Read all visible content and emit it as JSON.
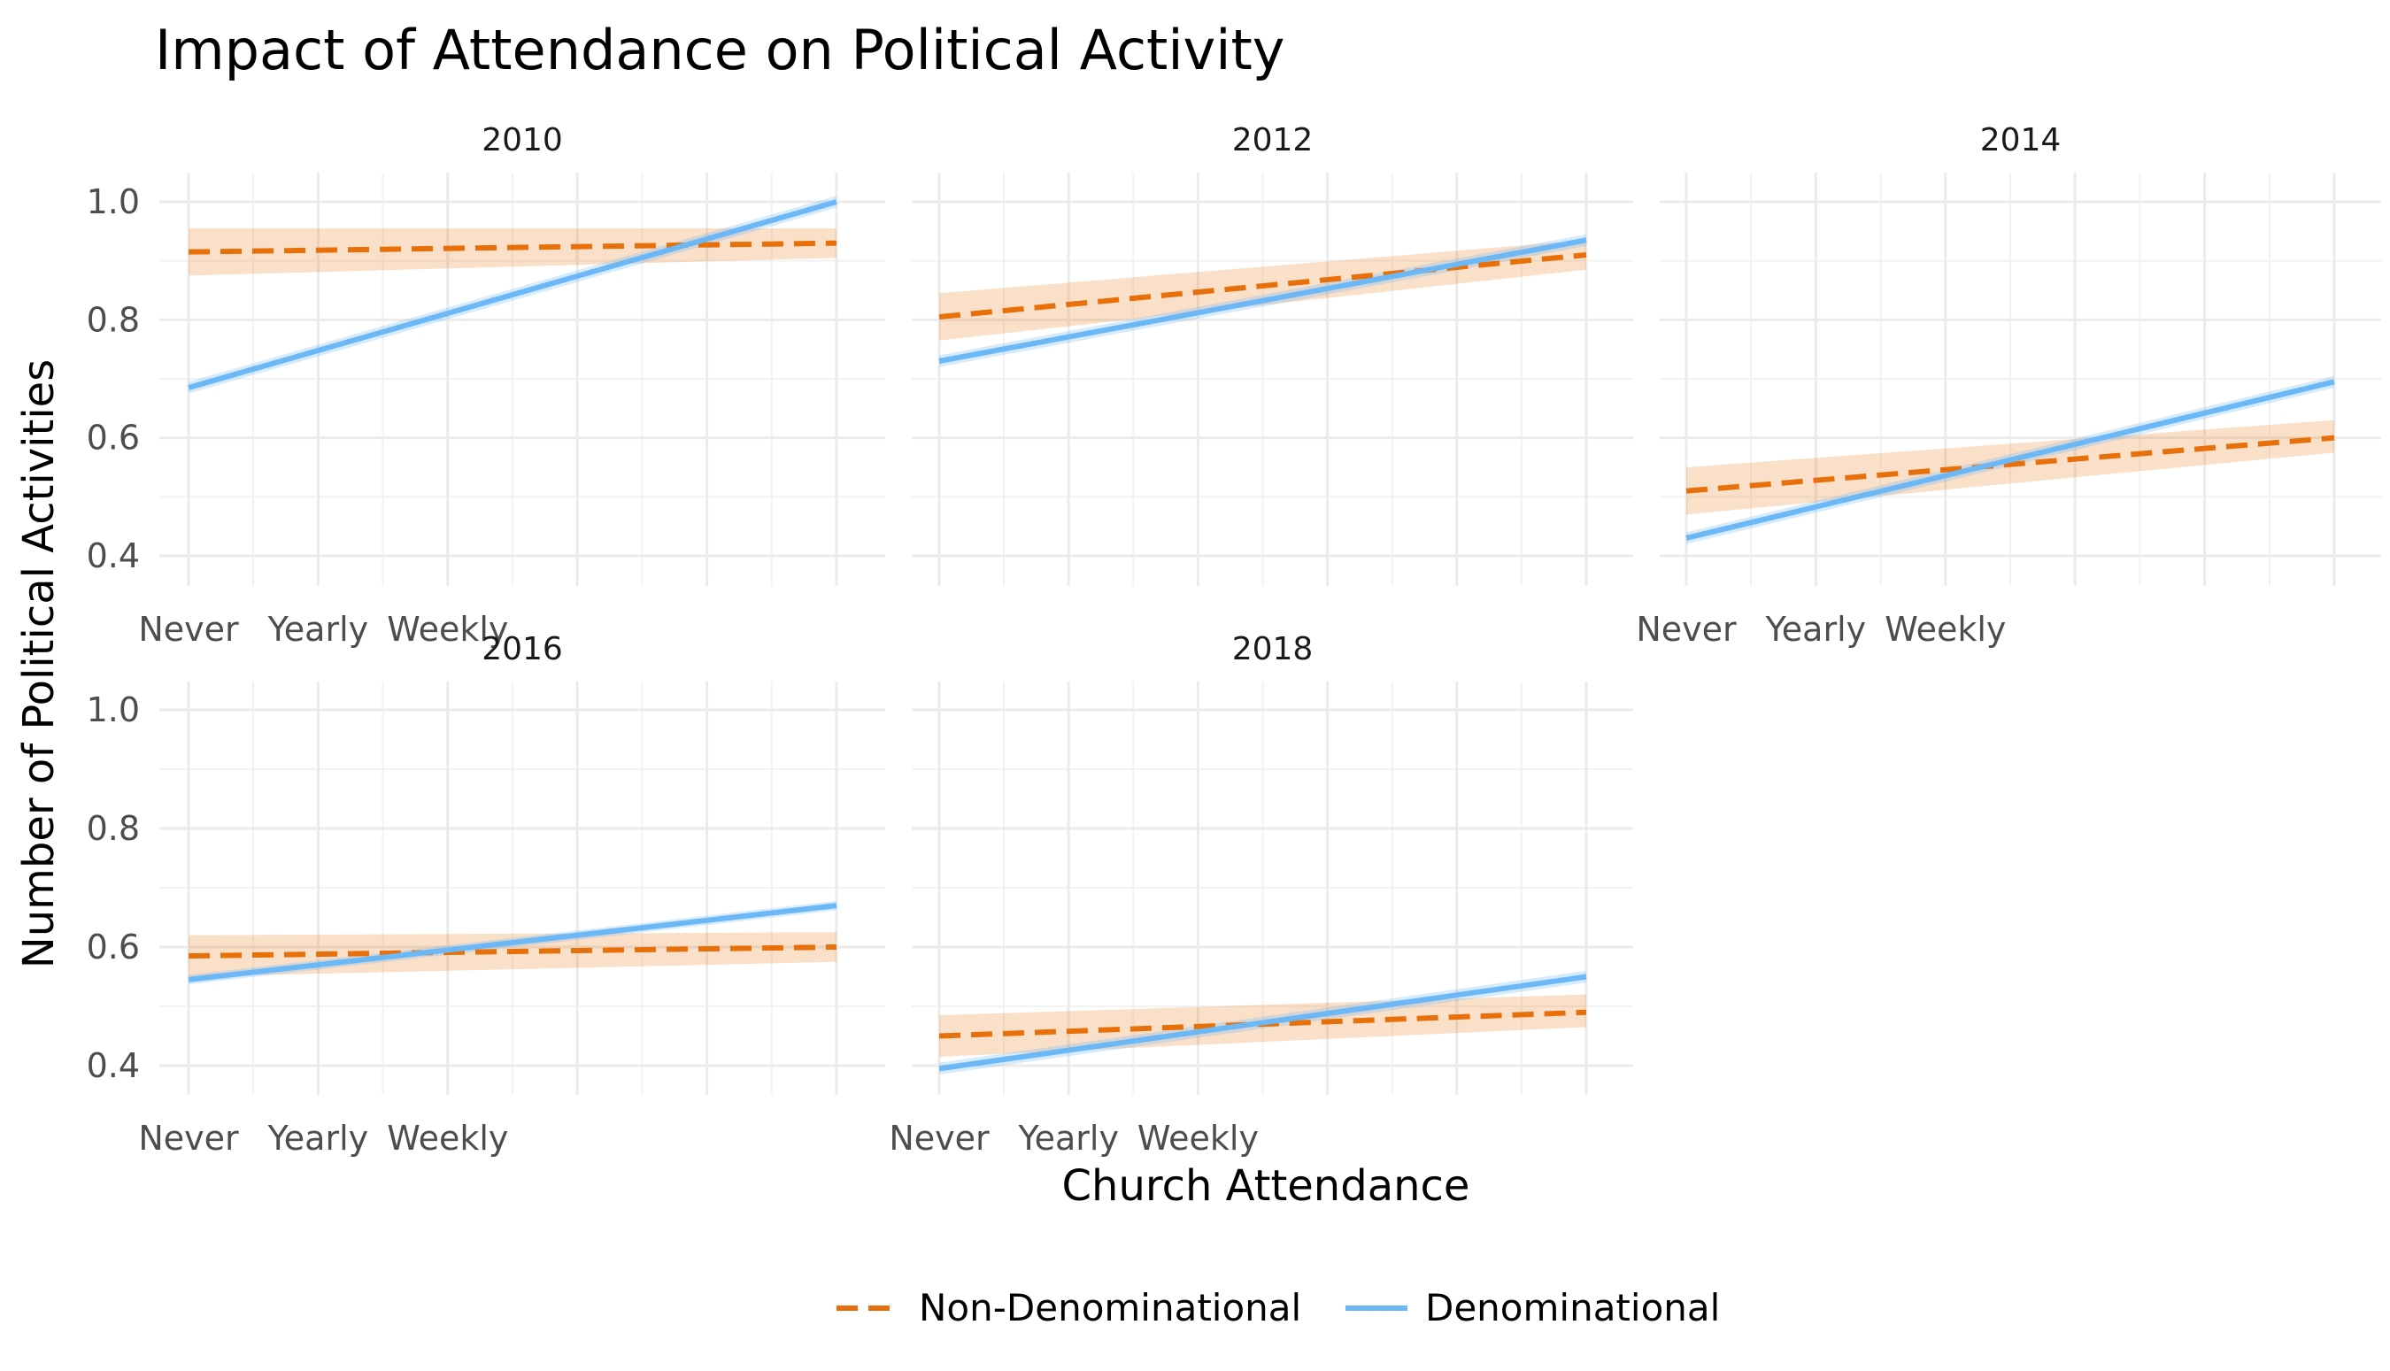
{
  "chart_data": {
    "type": "line",
    "title": "Impact of Attendance on Political Activity",
    "xlabel": "Church Attendance",
    "ylabel": "Number of Political Activities",
    "x_ticks": [
      "Never",
      "Yearly",
      "Weekly"
    ],
    "y_ticks": [
      "0.4",
      "0.6",
      "0.8",
      "1.0"
    ],
    "xlim": [
      0,
      10
    ],
    "ylim": [
      0.4,
      1.0
    ],
    "grid": true,
    "legend_position": "bottom",
    "legend": [
      {
        "name": "Non-Denominational",
        "color": "#e8700a",
        "style": "dashed"
      },
      {
        "name": "Denominational",
        "color": "#6cb8f6",
        "style": "solid"
      }
    ],
    "panels": [
      {
        "label": "2010",
        "series": [
          {
            "name": "Non-Denominational",
            "x": [
              0,
              10
            ],
            "y": [
              0.915,
              0.93
            ],
            "ci_lower": [
              0.875,
              0.905
            ],
            "ci_upper": [
              0.955,
              0.955
            ]
          },
          {
            "name": "Denominational",
            "x": [
              0,
              10
            ],
            "y": [
              0.685,
              1.0
            ],
            "ci_lower": [
              0.675,
              0.99
            ],
            "ci_upper": [
              0.695,
              1.01
            ]
          }
        ]
      },
      {
        "label": "2012",
        "series": [
          {
            "name": "Non-Denominational",
            "x": [
              0,
              10
            ],
            "y": [
              0.805,
              0.91
            ],
            "ci_lower": [
              0.765,
              0.885
            ],
            "ci_upper": [
              0.845,
              0.935
            ]
          },
          {
            "name": "Denominational",
            "x": [
              0,
              10
            ],
            "y": [
              0.73,
              0.935
            ],
            "ci_lower": [
              0.72,
              0.925
            ],
            "ci_upper": [
              0.74,
              0.945
            ]
          }
        ]
      },
      {
        "label": "2014",
        "series": [
          {
            "name": "Non-Denominational",
            "x": [
              0,
              10
            ],
            "y": [
              0.51,
              0.6
            ],
            "ci_lower": [
              0.47,
              0.575
            ],
            "ci_upper": [
              0.55,
              0.63
            ]
          },
          {
            "name": "Denominational",
            "x": [
              0,
              10
            ],
            "y": [
              0.43,
              0.695
            ],
            "ci_lower": [
              0.42,
              0.685
            ],
            "ci_upper": [
              0.44,
              0.705
            ]
          }
        ]
      },
      {
        "label": "2016",
        "series": [
          {
            "name": "Non-Denominational",
            "x": [
              0,
              10
            ],
            "y": [
              0.585,
              0.6
            ],
            "ci_lower": [
              0.55,
              0.575
            ],
            "ci_upper": [
              0.62,
              0.625
            ]
          },
          {
            "name": "Denominational",
            "x": [
              0,
              10
            ],
            "y": [
              0.545,
              0.67
            ],
            "ci_lower": [
              0.537,
              0.662
            ],
            "ci_upper": [
              0.553,
              0.678
            ]
          }
        ]
      },
      {
        "label": "2018",
        "series": [
          {
            "name": "Non-Denominational",
            "x": [
              0,
              10
            ],
            "y": [
              0.45,
              0.49
            ],
            "ci_lower": [
              0.415,
              0.465
            ],
            "ci_upper": [
              0.485,
              0.52
            ]
          },
          {
            "name": "Denominational",
            "x": [
              0,
              10
            ],
            "y": [
              0.395,
              0.55
            ],
            "ci_lower": [
              0.385,
              0.54
            ],
            "ci_upper": [
              0.405,
              0.56
            ]
          }
        ]
      }
    ]
  }
}
